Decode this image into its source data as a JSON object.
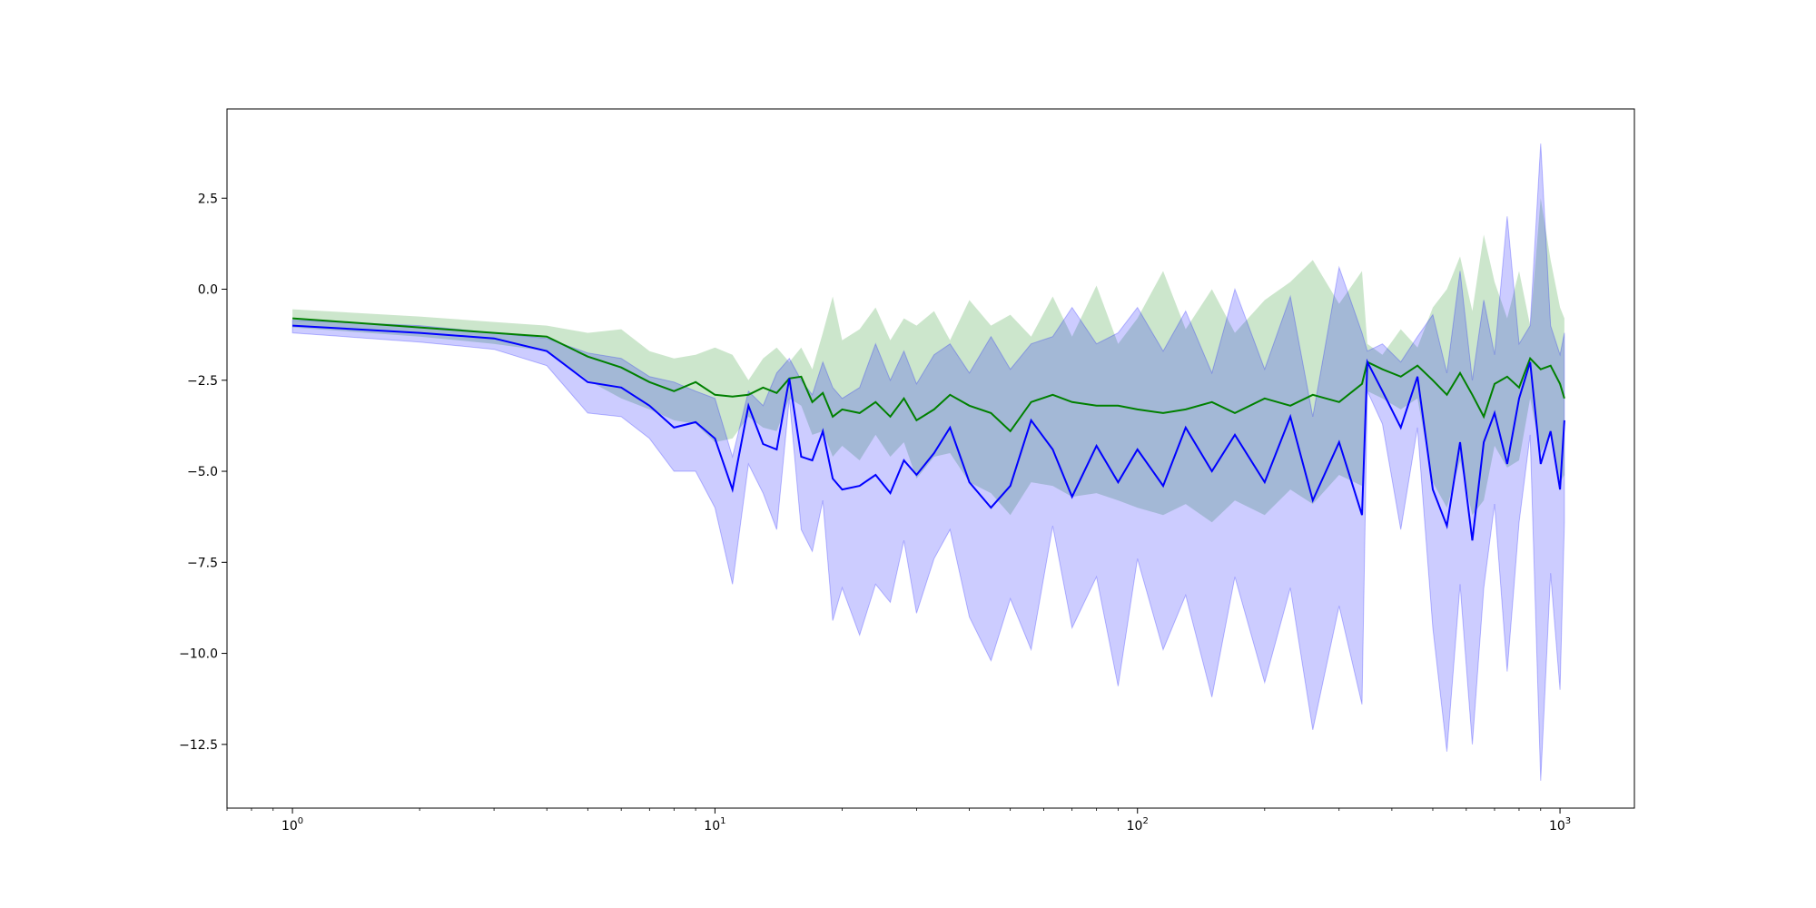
{
  "chart_data": {
    "type": "line",
    "title": "",
    "xlabel": "",
    "ylabel": "",
    "x_scale": "log",
    "xlim": [
      0.7,
      1500
    ],
    "ylim": [
      -14.25,
      4.95
    ],
    "grid": false,
    "legend": null,
    "x_ticks": [
      {
        "value": 1,
        "base": "10",
        "exp": "0"
      },
      {
        "value": 10,
        "base": "10",
        "exp": "1"
      },
      {
        "value": 100,
        "base": "10",
        "exp": "2"
      },
      {
        "value": 1000,
        "base": "10",
        "exp": "3"
      }
    ],
    "y_ticks": [
      {
        "value": 2.5,
        "label": "2.5"
      },
      {
        "value": 0.0,
        "label": "0.0"
      },
      {
        "value": -2.5,
        "label": "−2.5"
      },
      {
        "value": -5.0,
        "label": "−5.0"
      },
      {
        "value": -7.5,
        "label": "−7.5"
      },
      {
        "value": -10.0,
        "label": "−10.0"
      },
      {
        "value": -12.5,
        "label": "−12.5"
      }
    ],
    "x": [
      1,
      2,
      3,
      4,
      5,
      6,
      7,
      8,
      9,
      10,
      11,
      12,
      13,
      14,
      15,
      16,
      17,
      18,
      19,
      20,
      22,
      24,
      26,
      28,
      30,
      33,
      36,
      40,
      45,
      50,
      56,
      63,
      70,
      80,
      90,
      100,
      115,
      130,
      150,
      170,
      200,
      230,
      260,
      300,
      340,
      350,
      380,
      420,
      460,
      500,
      540,
      580,
      620,
      660,
      700,
      750,
      800,
      850,
      900,
      950,
      1000,
      1024
    ],
    "series": [
      {
        "color": "#008000",
        "band_color": "#008000",
        "band_opacity": 0.2,
        "mean": [
          -0.8,
          -1.05,
          -1.2,
          -1.3,
          -1.85,
          -2.15,
          -2.55,
          -2.8,
          -2.55,
          -2.9,
          -2.95,
          -2.9,
          -2.7,
          -2.85,
          -2.45,
          -2.4,
          -3.1,
          -2.85,
          -3.5,
          -3.3,
          -3.4,
          -3.1,
          -3.5,
          -3.0,
          -3.6,
          -3.3,
          -2.9,
          -3.2,
          -3.4,
          -3.9,
          -3.1,
          -2.9,
          -3.1,
          -3.2,
          -3.2,
          -3.3,
          -3.4,
          -3.3,
          -3.1,
          -3.4,
          -3.0,
          -3.2,
          -2.9,
          -3.1,
          -2.6,
          -2.0,
          -2.2,
          -2.4,
          -2.1,
          -2.5,
          -2.9,
          -2.3,
          -2.9,
          -3.5,
          -2.6,
          -2.4,
          -2.7,
          -1.9,
          -2.2,
          -2.1,
          -2.6,
          -3.0
        ],
        "upper": [
          -0.55,
          -0.75,
          -0.9,
          -1.0,
          -1.2,
          -1.1,
          -1.7,
          -1.9,
          -1.8,
          -1.6,
          -1.8,
          -2.5,
          -1.9,
          -1.6,
          -2.0,
          -1.6,
          -2.2,
          -1.2,
          -0.2,
          -1.4,
          -1.1,
          -0.5,
          -1.4,
          -0.8,
          -1.0,
          -0.6,
          -1.4,
          -0.3,
          -1.0,
          -0.7,
          -1.3,
          -0.2,
          -1.3,
          0.1,
          -1.5,
          -0.8,
          0.5,
          -1.1,
          0.0,
          -1.2,
          -0.3,
          0.2,
          0.8,
          -0.4,
          0.5,
          -1.5,
          -1.8,
          -1.1,
          -1.6,
          -0.5,
          0.0,
          0.9,
          -0.6,
          1.5,
          0.2,
          -0.8,
          0.5,
          -1.0,
          2.5,
          0.8,
          -0.5,
          -0.8
        ]
      },
      {
        "color": "#0000ff",
        "band_color": "#0000ff",
        "band_opacity": 0.2,
        "mean": [
          -1.0,
          -1.2,
          -1.35,
          -1.7,
          -2.55,
          -2.7,
          -3.2,
          -3.8,
          -3.65,
          -4.1,
          -5.5,
          -3.2,
          -4.25,
          -4.4,
          -2.45,
          -4.6,
          -4.7,
          -3.9,
          -5.2,
          -5.5,
          -5.4,
          -5.1,
          -5.6,
          -4.7,
          -5.1,
          -4.5,
          -3.8,
          -5.3,
          -6.0,
          -5.4,
          -3.6,
          -4.4,
          -5.7,
          -4.3,
          -5.3,
          -4.4,
          -5.4,
          -3.8,
          -5.0,
          -4.0,
          -5.3,
          -3.5,
          -5.8,
          -4.2,
          -6.2,
          -2.0,
          -2.8,
          -3.8,
          -2.4,
          -5.5,
          -6.5,
          -4.2,
          -6.9,
          -4.2,
          -3.4,
          -4.8,
          -3.0,
          -2.0,
          -4.8,
          -3.9,
          -5.5,
          -3.6
        ],
        "upper": [
          -0.85,
          -1.0,
          -1.2,
          -1.35,
          -1.75,
          -1.9,
          -2.4,
          -2.55,
          -2.8,
          -3.0,
          -4.6,
          -2.8,
          -3.2,
          -2.3,
          -1.9,
          -2.5,
          -2.9,
          -2.0,
          -2.7,
          -3.0,
          -2.7,
          -1.5,
          -2.5,
          -1.7,
          -2.6,
          -1.8,
          -1.5,
          -2.3,
          -1.3,
          -2.2,
          -1.5,
          -1.3,
          -0.5,
          -1.5,
          -1.2,
          -0.5,
          -1.7,
          -0.6,
          -2.3,
          0.0,
          -2.2,
          -0.2,
          -3.5,
          0.6,
          -1.2,
          -1.7,
          -1.5,
          -2.0,
          -1.3,
          -0.7,
          -2.3,
          0.5,
          -2.5,
          -0.3,
          -1.8,
          2.0,
          -1.5,
          -1.0,
          4.0,
          -1.0,
          -1.8,
          -1.2
        ],
        "lower": [
          -1.2,
          -1.45,
          -1.65,
          -2.1,
          -3.4,
          -3.5,
          -4.1,
          -5.0,
          -5.0,
          -6.0,
          -8.1,
          -4.8,
          -5.6,
          -6.6,
          -3.0,
          -6.6,
          -7.2,
          -5.8,
          -9.1,
          -8.2,
          -9.5,
          -8.1,
          -8.6,
          -6.9,
          -8.9,
          -7.4,
          -6.6,
          -9.0,
          -10.2,
          -8.5,
          -9.9,
          -6.5,
          -9.3,
          -7.9,
          -10.9,
          -7.4,
          -9.9,
          -8.4,
          -11.2,
          -7.9,
          -10.8,
          -8.2,
          -12.1,
          -8.7,
          -11.4,
          -2.8,
          -3.7,
          -6.6,
          -3.8,
          -9.3,
          -12.7,
          -8.1,
          -12.5,
          -8.2,
          -5.9,
          -10.5,
          -6.4,
          -4.0,
          -13.5,
          -7.8,
          -11.0,
          -6.4
        ]
      }
    ],
    "green_lower": [
      -1.05,
      -1.3,
      -1.5,
      -1.7,
      -2.5,
      -3.0,
      -3.3,
      -3.6,
      -3.7,
      -4.2,
      -4.1,
      -3.5,
      -3.8,
      -3.9,
      -3.0,
      -3.2,
      -4.0,
      -3.9,
      -4.6,
      -4.3,
      -4.7,
      -4.0,
      -4.6,
      -4.2,
      -5.2,
      -4.6,
      -4.5,
      -5.3,
      -5.6,
      -6.2,
      -5.3,
      -5.4,
      -5.7,
      -5.6,
      -5.8,
      -6.0,
      -6.2,
      -5.9,
      -6.4,
      -5.8,
      -6.2,
      -5.5,
      -5.9,
      -5.1,
      -5.4,
      -2.8,
      -3.0,
      -3.3,
      -3.0,
      -5.3,
      -6.0,
      -4.7,
      -6.2,
      -5.8,
      -4.3,
      -4.9,
      -4.7,
      -3.0,
      -4.5,
      -4.0,
      -5.3,
      -5.1
    ]
  }
}
